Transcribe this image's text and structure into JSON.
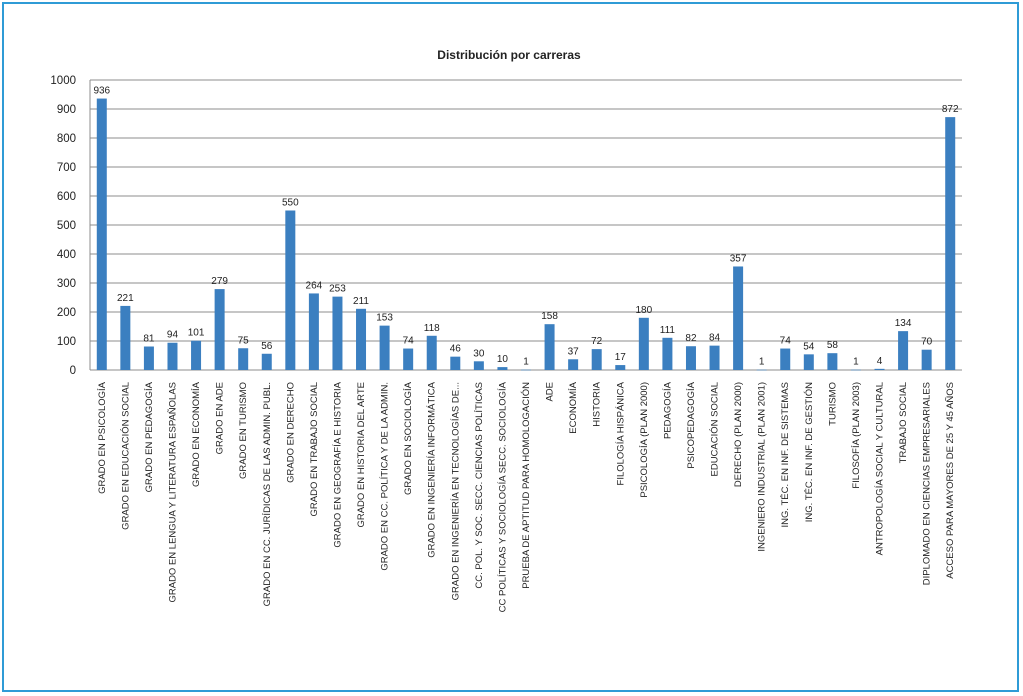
{
  "chart_data": {
    "type": "bar",
    "title": "Distribución por carreras",
    "xlabel": "",
    "ylabel": "",
    "ylim": [
      0,
      1000
    ],
    "yticks": [
      0,
      100,
      200,
      300,
      400,
      500,
      600,
      700,
      800,
      900,
      1000
    ],
    "grid": true,
    "legend": "none",
    "bar_color": "#3b7fc0",
    "categories": [
      "GRADO EN PSICOLOGÍA",
      "GRADO EN EDUCACIÓN SOCIAL",
      "GRADO EN PEDAGOGÍA",
      "GRADO EN LENGUA Y LITERATURA ESPAÑOLAS",
      "GRADO EN ECONOMÍA",
      "GRADO EN ADE",
      "GRADO EN TURISMO",
      "GRADO EN CC. JURÍDICAS DE LAS ADMIN. PUBL.",
      "GRADO EN DERECHO",
      "GRADO EN TRABAJO SOCIAL",
      "GRADO EN GEOGRAFÍA E HISTORIA",
      "GRADO EN HISTORIA DEL ARTE",
      "GRADO EN CC. POLÍTICA Y DE LA ADMIN.",
      "GRADO EN SOCIOLOGÍA",
      "GRADO EN INGENIERÍA INFORMÁTICA",
      "GRADO EN INGENIERÍA EN TECNOLOGÍAS DE...",
      "CC. POL. Y SOC. SECC. CIENCIAS POLÍTICAS",
      "CC POLÍTICAS Y SOCIOLOGÍA SECC. SOCIOLOGÍA",
      "PRUEBA DE APTITUD PARA HOMOLOGACIÓN",
      "ADE",
      "ECONOMÍA",
      "HISTORIA",
      "FILOLOGÍA HISPÁNICA",
      "PSICOLOGÍA (PLAN 2000)",
      "PEDAGOGÍA",
      "PSICOPEDAGOGÍA",
      "EDUCACIÓN SOCIAL",
      "DERECHO (PLAN 2000)",
      "INGENIERO INDUSTRIAL (PLAN 2001)",
      "ING. TÉC. EN INF. DE SISTEMAS",
      "ING. TÉC. EN INF. DE GESTIÓN",
      "TURISMO",
      "FILOSOFÍA (PLAN 2003)",
      "ANTROPOLOGÍA SOCIAL Y CULTURAL",
      "TRABAJO SOCIAL",
      "DIPLOMADO EN CIENCIAS EMPRESARIALES",
      "ACCESO PARA MAYORES DE 25 Y 45 AÑOS"
    ],
    "values": [
      936,
      221,
      81,
      94,
      101,
      279,
      75,
      56,
      550,
      264,
      253,
      211,
      153,
      74,
      118,
      46,
      30,
      10,
      1,
      158,
      37,
      72,
      17,
      180,
      111,
      82,
      84,
      357,
      1,
      74,
      54,
      58,
      1,
      4,
      134,
      70,
      872
    ]
  }
}
